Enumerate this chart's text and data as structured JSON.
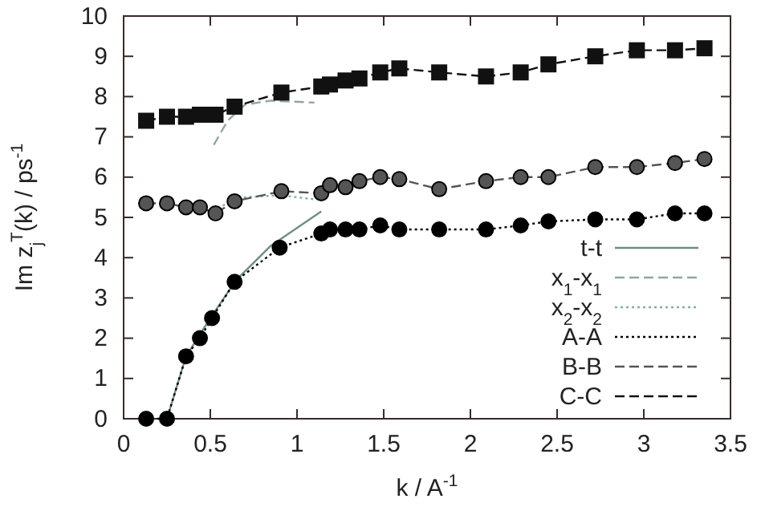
{
  "chart_data": {
    "type": "line",
    "xlabel": "k / A$^{-1}$",
    "ylabel": "Im z$_{j}$$^{T}$(k) / ps$^{-1}$",
    "xlim": [
      0,
      3.5
    ],
    "xticks": [
      0,
      0.5,
      1,
      1.5,
      2,
      2.5,
      3,
      3.5
    ],
    "ylim": [
      0,
      10
    ],
    "yticks": [
      0,
      1,
      2,
      3,
      4,
      5,
      6,
      7,
      8,
      9,
      10
    ],
    "grid": false,
    "legend": "bottom right",
    "series": [
      {
        "name": "t-t",
        "color": "#6f8f80",
        "line_style": "solid",
        "marker": "none",
        "x": [
          0.25,
          0.36,
          0.5,
          0.65,
          0.85,
          1.14
        ],
        "values": [
          0,
          1.55,
          2.5,
          3.45,
          4.3,
          5.15
        ]
      },
      {
        "name": "x$_{1}$-x$_{1}$",
        "color": "#8fa89c",
        "line_style": "dashed",
        "marker": "none",
        "x": [
          0.52,
          0.6,
          0.7,
          0.85,
          1.1
        ],
        "values": [
          6.8,
          7.4,
          7.8,
          7.9,
          7.85
        ]
      },
      {
        "name": "x$_{2}$-x$_{2}$",
        "color": "#7fb0a0",
        "line_style": "dotted",
        "marker": "none",
        "x": [
          0.45,
          0.7,
          0.9,
          1.1
        ],
        "values": [
          5.1,
          5.5,
          5.55,
          5.45
        ]
      },
      {
        "name": "A-A",
        "color": "#000000",
        "line_style": "dotted",
        "marker": "circle",
        "x": [
          0.13,
          0.25,
          0.36,
          0.44,
          0.51,
          0.64,
          0.9,
          1.14,
          1.19,
          1.28,
          1.36,
          1.48,
          1.59,
          1.82,
          2.09,
          2.29,
          2.45,
          2.72,
          2.96,
          3.18,
          3.35
        ],
        "values": [
          0,
          0,
          1.55,
          2.0,
          2.5,
          3.4,
          4.25,
          4.6,
          4.7,
          4.7,
          4.7,
          4.8,
          4.7,
          4.7,
          4.7,
          4.8,
          4.9,
          4.95,
          4.95,
          5.1,
          5.1
        ]
      },
      {
        "name": "B-B",
        "color": "#555555",
        "line_style": "dashed",
        "marker": "circle",
        "x": [
          0.13,
          0.25,
          0.36,
          0.44,
          0.53,
          0.64,
          0.91,
          1.14,
          1.19,
          1.28,
          1.36,
          1.48,
          1.59,
          1.82,
          2.09,
          2.29,
          2.45,
          2.72,
          2.96,
          3.18,
          3.35
        ],
        "values": [
          5.35,
          5.35,
          5.25,
          5.25,
          5.1,
          5.4,
          5.65,
          5.6,
          5.8,
          5.75,
          5.9,
          6.0,
          5.95,
          5.7,
          5.9,
          6.0,
          6.0,
          6.25,
          6.25,
          6.35,
          6.45
        ]
      },
      {
        "name": "C-C",
        "color": "#111111",
        "line_style": "dashed",
        "marker": "square",
        "x": [
          0.13,
          0.25,
          0.36,
          0.44,
          0.53,
          0.64,
          0.91,
          1.14,
          1.19,
          1.28,
          1.36,
          1.48,
          1.59,
          1.82,
          2.09,
          2.29,
          2.45,
          2.72,
          2.96,
          3.18,
          3.35
        ],
        "values": [
          7.4,
          7.5,
          7.5,
          7.55,
          7.55,
          7.75,
          8.1,
          8.25,
          8.3,
          8.4,
          8.45,
          8.6,
          8.7,
          8.6,
          8.5,
          8.6,
          8.8,
          9.0,
          9.15,
          9.15,
          9.2
        ]
      }
    ]
  }
}
